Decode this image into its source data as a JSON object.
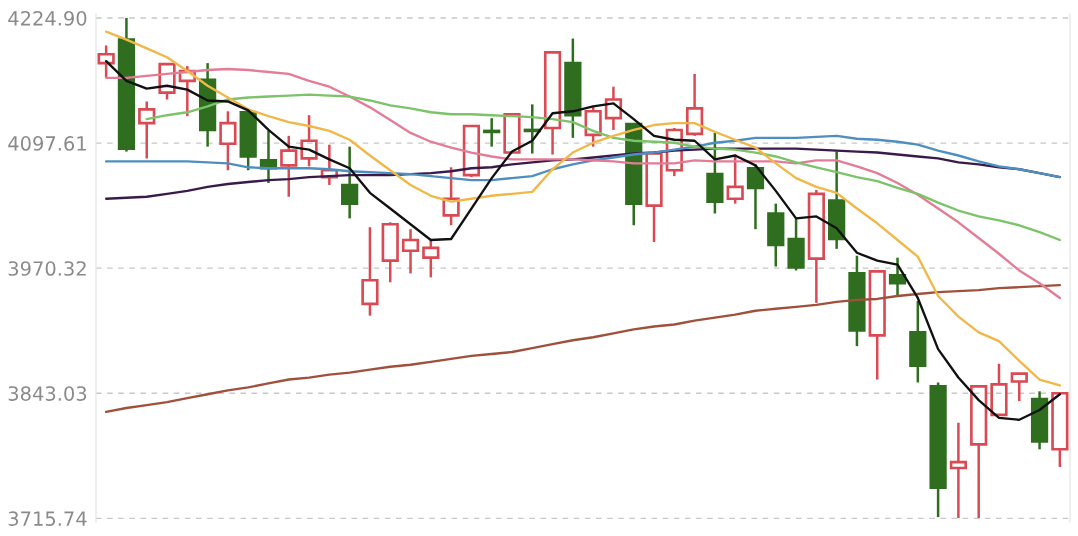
{
  "chart_data": {
    "type": "candlestick",
    "categories": [
      null,
      null,
      null,
      null,
      null,
      null,
      null,
      null,
      null,
      null,
      null,
      null,
      null,
      null,
      null,
      null,
      null,
      null,
      null,
      null,
      null,
      null,
      null,
      null,
      null,
      null,
      null,
      null,
      null,
      null,
      null,
      null,
      null,
      null,
      null,
      null,
      null,
      null,
      null,
      null,
      null,
      null,
      null,
      null,
      null,
      null,
      null,
      null
    ],
    "ohlc": [
      [
        4179,
        4197,
        4164,
        4188
      ],
      [
        4203,
        4225,
        4089,
        4092
      ],
      [
        4118,
        4140,
        4082,
        4132
      ],
      [
        4149,
        4179,
        4142,
        4178
      ],
      [
        4161,
        4176,
        4125,
        4171
      ],
      [
        4162,
        4179,
        4094,
        4111
      ],
      [
        4097,
        4130,
        4070,
        4118
      ],
      [
        4129,
        4129,
        4070,
        4084
      ],
      [
        4080,
        4110,
        4057,
        4072
      ],
      [
        4075,
        4105,
        4043,
        4090
      ],
      [
        4082,
        4126,
        4074,
        4100
      ],
      [
        4063,
        4096,
        4055,
        4070
      ],
      [
        4055,
        4094,
        4021,
        4036
      ],
      [
        3934,
        4012,
        3922,
        3958
      ],
      [
        3978,
        4017,
        3956,
        4015
      ],
      [
        3988,
        4010,
        3965,
        3999
      ],
      [
        3981,
        4000,
        3961,
        3991
      ],
      [
        4024,
        4073,
        4014,
        4041
      ],
      [
        4065,
        4115,
        4063,
        4115
      ],
      [
        4110,
        4123,
        4094,
        4109
      ],
      [
        4088,
        4128,
        4088,
        4127
      ],
      [
        4111,
        4137,
        4087,
        4110
      ],
      [
        4113,
        4190,
        4086,
        4190
      ],
      [
        4179,
        4204,
        4103,
        4126
      ],
      [
        4106,
        4135,
        4094,
        4130
      ],
      [
        4123,
        4155,
        4111,
        4142
      ],
      [
        4117,
        4117,
        4014,
        4036
      ],
      [
        4034,
        4087,
        3997,
        4087
      ],
      [
        4070,
        4113,
        4064,
        4111
      ],
      [
        4107,
        4168,
        4105,
        4133
      ],
      [
        4066,
        4108,
        4026,
        4038
      ],
      [
        4041,
        4086,
        4036,
        4053
      ],
      [
        4072,
        4076,
        4010,
        4052
      ],
      [
        4026,
        4036,
        3972,
        3994
      ],
      [
        4000,
        4021,
        3968,
        3971
      ],
      [
        3980,
        4050,
        3935,
        4046
      ],
      [
        4039,
        4089,
        3990,
        4000
      ],
      [
        3965,
        3983,
        3891,
        3907
      ],
      [
        3902,
        3968,
        3857,
        3967
      ],
      [
        3963,
        3981,
        3941,
        3955
      ],
      [
        3905,
        3937,
        3854,
        3871
      ],
      [
        3850,
        3854,
        3717,
        3747
      ],
      [
        3767,
        3813,
        3716,
        3773
      ],
      [
        3791,
        3850,
        3716,
        3850
      ],
      [
        3821,
        3873,
        3821,
        3852
      ],
      [
        3855,
        3863,
        3835,
        3863
      ],
      [
        3837,
        3845,
        3786,
        3794
      ],
      [
        3786,
        3843,
        3768,
        3843
      ]
    ],
    "colors": [
      "#d94a55",
      "#2f6e1f",
      "#d94a55",
      "#d94a55",
      "#d94a55",
      "#2f6e1f",
      "#d94a55",
      "#2f6e1f",
      "#2f6e1f",
      "#d94a55",
      "#d94a55",
      "#d94a55",
      "#2f6e1f",
      "#d94a55",
      "#d94a55",
      "#d94a55",
      "#d94a55",
      "#d94a55",
      "#d94a55",
      "#2f6e1f",
      "#d94a55",
      "#2f6e1f",
      "#d94a55",
      "#2f6e1f",
      "#d94a55",
      "#d94a55",
      "#2f6e1f",
      "#d94a55",
      "#d94a55",
      "#d94a55",
      "#2f6e1f",
      "#d94a55",
      "#2f6e1f",
      "#2f6e1f",
      "#2f6e1f",
      "#d94a55",
      "#2f6e1f",
      "#2f6e1f",
      "#d94a55",
      "#2f6e1f",
      "#2f6e1f",
      "#2f6e1f",
      "#d94a55",
      "#d94a55",
      "#d94a55",
      "#d94a55",
      "#2f6e1f",
      "#d94a55"
    ],
    "series": [
      {
        "type": "line",
        "color": "#a0503c",
        "values": [
          3824,
          3828,
          3831,
          3834,
          3838,
          3842,
          3846,
          3849,
          3853,
          3857,
          3859,
          3862,
          3864,
          3867,
          3870,
          3872,
          3875,
          3878,
          3881,
          3883,
          3885,
          3889,
          3893,
          3897,
          3900,
          3904,
          3908,
          3911,
          3913,
          3917,
          3920,
          3923,
          3927,
          3929,
          3931,
          3933,
          3936,
          3938,
          3939,
          3942,
          3944,
          3946,
          3947,
          3948,
          3950,
          3951,
          3952,
          3953
        ]
      },
      {
        "type": "line",
        "color": "#3a1a4a",
        "values": [
          4041,
          4042,
          4043,
          4046,
          4049,
          4053,
          4056,
          4058,
          4060,
          4061,
          4063,
          4064,
          4065,
          4065,
          4065,
          4066,
          4067,
          4069,
          4072,
          4073,
          4076,
          4078,
          4080,
          4081,
          4083,
          4085,
          4087,
          4088,
          4090,
          4091,
          4092,
          4092,
          4092,
          4092,
          4092,
          4091,
          4090,
          4089,
          4088,
          4086,
          4084,
          4082,
          4078,
          4076,
          4073,
          4071,
          4067,
          4063
        ]
      },
      {
        "type": "line",
        "color": "#4f8fbf",
        "values": [
          4079,
          4079,
          4079,
          4079,
          4079,
          4078,
          4077,
          4073,
          4072,
          4072,
          4072,
          4071,
          4069,
          4068,
          4067,
          4066,
          4064,
          4062,
          4060,
          4060,
          4062,
          4064,
          4071,
          4076,
          4080,
          4083,
          4086,
          4088,
          4091,
          4094,
          4098,
          4100,
          4103,
          4103,
          4103,
          4104,
          4105,
          4102,
          4101,
          4099,
          4096,
          4090,
          4085,
          4079,
          4074,
          4071,
          4067,
          4063
        ]
      },
      {
        "type": "line",
        "color": "#e37d97",
        "values": [
          4164,
          4164,
          4166,
          4168,
          4170,
          4172,
          4173,
          4172,
          4170,
          4168,
          4161,
          4155,
          4145,
          4134,
          4121,
          4108,
          4099,
          4093,
          4088,
          4084,
          4081,
          4081,
          4081,
          4081,
          4080,
          4079,
          4077,
          4077,
          4077,
          4080,
          4079,
          4079,
          4079,
          4079,
          4077,
          4080,
          4080,
          4074,
          4067,
          4057,
          4045,
          4031,
          4017,
          4001,
          3985,
          3968,
          3955,
          3940
        ]
      },
      {
        "type": "line",
        "color": "#7cc36a",
        "values": [
          null,
          null,
          4122,
          4126,
          4129,
          4135,
          4142,
          4144,
          4145,
          4146,
          4147,
          4146,
          4145,
          4141,
          4136,
          4133,
          4129,
          4127,
          4127,
          4126,
          4125,
          4124,
          4122,
          4119,
          4110,
          4103,
          4100,
          4099,
          4098,
          4094,
          4092,
          4091,
          4088,
          4084,
          4078,
          4073,
          4068,
          4063,
          4059,
          4052,
          4046,
          4037,
          4029,
          4023,
          4019,
          4014,
          4007,
          3999
        ]
      },
      {
        "type": "line",
        "color": "#f0b848",
        "values": [
          4211,
          4203,
          4194,
          4185,
          4171,
          4156,
          4144,
          4132,
          4125,
          4119,
          4115,
          4110,
          4101,
          4085,
          4070,
          4055,
          4044,
          4038,
          4041,
          4044,
          4046,
          4048,
          4071,
          4088,
          4098,
          4105,
          4111,
          4116,
          4118,
          4118,
          4109,
          4101,
          4093,
          4077,
          4062,
          4053,
          4047,
          4031,
          4016,
          3999,
          3982,
          3942,
          3921,
          3905,
          3896,
          3876,
          3857,
          3851
        ]
      },
      {
        "type": "line",
        "color": "#111111",
        "values": [
          4181,
          4161,
          4153,
          4156,
          4152,
          4141,
          4140,
          4131,
          4111,
          4094,
          4091,
          4081,
          4072,
          4047,
          4031,
          4015,
          3999,
          4000,
          4031,
          4062,
          4089,
          4100,
          4128,
          4130,
          4135,
          4138,
          4122,
          4105,
          4101,
          4100,
          4081,
          4085,
          4075,
          4049,
          4021,
          4023,
          4011,
          3986,
          3978,
          3974,
          3940,
          3888,
          3859,
          3836,
          3818,
          3816,
          3826,
          3842
        ]
      }
    ],
    "ylim": [
      3712,
      4229
    ],
    "yticks": [
      {
        "value": 4224.9,
        "label": "4224.90"
      },
      {
        "value": 4097.61,
        "label": "4097.61"
      },
      {
        "value": 3970.32,
        "label": "3970.32"
      },
      {
        "value": 3843.03,
        "label": "3843.03"
      },
      {
        "value": 3715.74,
        "label": "3715.74"
      }
    ],
    "grid": "y",
    "tick_labels": "y"
  }
}
